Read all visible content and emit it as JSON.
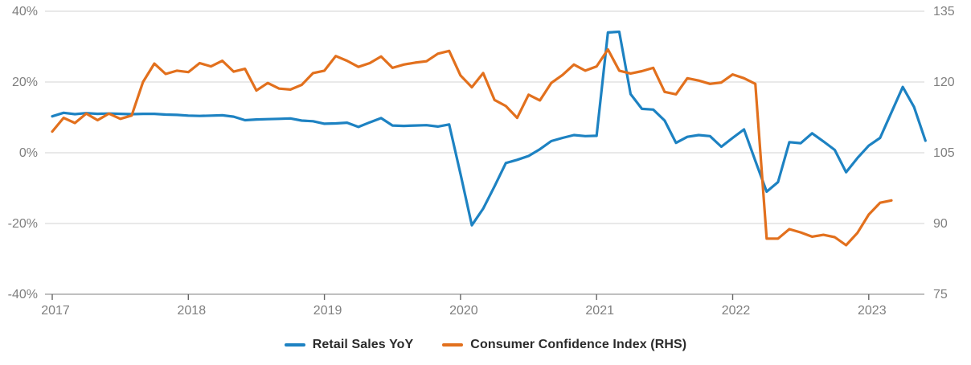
{
  "chart_data": {
    "type": "line",
    "title": "",
    "x_tick_labels": [
      "2017",
      "2018",
      "2019",
      "2020",
      "2021",
      "2022",
      "2023"
    ],
    "left_axis": {
      "tick_labels": [
        "40%",
        "20%",
        "0%",
        "-20%",
        "-40%"
      ],
      "tick_values": [
        40,
        20,
        0,
        -20,
        -40
      ],
      "range": [
        -40,
        40
      ]
    },
    "right_axis": {
      "tick_labels": [
        "135",
        "120",
        "105",
        "90",
        "75"
      ],
      "tick_values": [
        135,
        120,
        105,
        90,
        75
      ],
      "range": [
        75,
        135
      ]
    },
    "grid": "horizontal",
    "legend_position": "bottom",
    "start_month": "2017-01",
    "frequency": "monthly",
    "series": [
      {
        "name": "Retail Sales YoY",
        "axis": "left",
        "unit": "%",
        "color": "#1d82c2",
        "values": [
          10.3,
          11.3,
          10.9,
          11.2,
          11.0,
          11.1,
          11.0,
          10.9,
          11.0,
          11.0,
          10.8,
          10.7,
          10.5,
          10.4,
          10.5,
          10.6,
          10.2,
          9.2,
          9.4,
          9.5,
          9.6,
          9.7,
          9.1,
          8.9,
          8.2,
          8.3,
          8.5,
          7.3,
          8.6,
          9.8,
          7.7,
          7.6,
          7.7,
          7.8,
          7.4,
          8.0,
          -6.0,
          -20.5,
          -15.8,
          -9.5,
          -2.9,
          -2.0,
          -0.9,
          1.0,
          3.3,
          4.2,
          5.0,
          4.7,
          4.8,
          34.0,
          34.2,
          16.6,
          12.4,
          12.2,
          9.1,
          2.8,
          4.5,
          5.0,
          4.7,
          1.7,
          4.2,
          6.6,
          -2.3,
          -11.0,
          -8.3,
          3.0,
          2.7,
          5.5,
          3.2,
          0.8,
          -5.5,
          -1.5,
          2.0,
          4.2,
          11.4,
          18.6,
          12.9,
          3.4
        ]
      },
      {
        "name": "Consumer Confidence Index (RHS)",
        "axis": "right",
        "unit": "index",
        "color": "#e2701d",
        "values": [
          109.5,
          112.4,
          111.3,
          113.3,
          111.9,
          113.3,
          112.2,
          112.9,
          120.0,
          123.9,
          121.7,
          122.4,
          122.1,
          124.0,
          123.3,
          124.5,
          122.2,
          122.8,
          118.2,
          119.8,
          118.6,
          118.4,
          119.4,
          121.9,
          122.4,
          125.5,
          124.5,
          123.2,
          124.0,
          125.4,
          123.0,
          123.7,
          124.1,
          124.4,
          126.0,
          126.6,
          121.4,
          118.9,
          121.9,
          116.2,
          114.9,
          112.4,
          117.3,
          116.1,
          119.8,
          121.5,
          123.7,
          122.4,
          123.3,
          126.9,
          122.4,
          121.8,
          122.3,
          123.0,
          117.9,
          117.4,
          120.8,
          120.3,
          119.6,
          119.9,
          121.6,
          120.8,
          119.6,
          86.8,
          86.8,
          88.8,
          88.1,
          87.2,
          87.6,
          87.1,
          85.4,
          88.0,
          91.9,
          94.4,
          94.9
        ]
      }
    ]
  },
  "legend": {
    "items": [
      {
        "label": "Retail Sales YoY",
        "color": "#1d82c2"
      },
      {
        "label": "Consumer Confidence Index (RHS)",
        "color": "#e2701d"
      }
    ]
  },
  "colors": {
    "retail_line": "#1d82c2",
    "cci_line": "#e2701d",
    "axis_label": "#7f7f7f",
    "gridline": "#dcdcdc",
    "axis_line": "#ababab",
    "tick_mark": "#666666",
    "legend_text": "#2b2b2b",
    "background": "#ffffff"
  }
}
